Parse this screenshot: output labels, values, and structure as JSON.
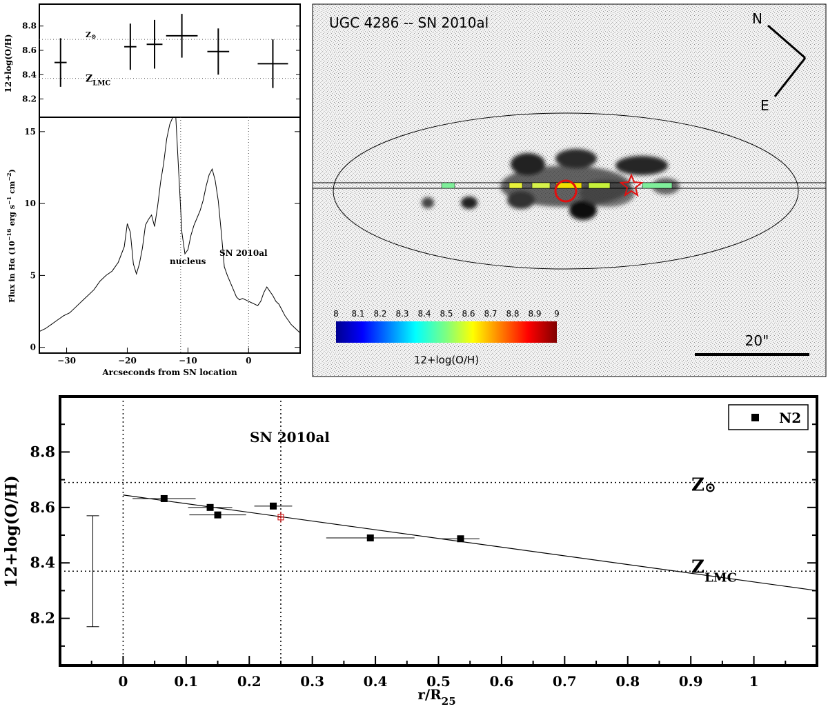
{
  "chart_data": [
    {
      "id": "top-left-abundance",
      "type": "scatter",
      "ylabel": "12+log(O/H)",
      "ylim": [
        8.05,
        8.98
      ],
      "xlim": [
        -34.5,
        8.5
      ],
      "yticks": [
        8.2,
        8.4,
        8.6,
        8.8
      ],
      "reference_lines": [
        {
          "y": 8.69,
          "label_main": "Z",
          "label_sub": "⊙"
        },
        {
          "y": 8.37,
          "label_main": "Z",
          "label_sub": "LMC"
        }
      ],
      "points": [
        {
          "x": -31.0,
          "y": 8.5,
          "xerr": 1.0,
          "yerr": 0.2
        },
        {
          "x": -19.5,
          "y": 8.63,
          "xerr": 1.0,
          "yerr": 0.19
        },
        {
          "x": -15.5,
          "y": 8.65,
          "xerr": 1.3,
          "yerr": 0.2
        },
        {
          "x": -11.0,
          "y": 8.72,
          "xerr": 2.6,
          "yerr": 0.18
        },
        {
          "x": -5.0,
          "y": 8.59,
          "xerr": 1.8,
          "yerr": 0.19
        },
        {
          "x": 4.0,
          "y": 8.49,
          "xerr": 2.5,
          "yerr": 0.2
        }
      ]
    },
    {
      "id": "halpha-profile",
      "type": "line",
      "xlabel": "Arcseconds from SN location",
      "ylabel": "Flux in Hα (10",
      "ylabel_exp1": "−16",
      "ylabel_mid": " erg s",
      "ylabel_exp2": "−1",
      "ylabel_mid2": " cm",
      "ylabel_exp3": "−2",
      "ylabel_end": ")",
      "xlim": [
        -34.5,
        8.5
      ],
      "ylim": [
        -0.4,
        16
      ],
      "xticks": [
        -30,
        -20,
        -10,
        0
      ],
      "yticks": [
        0,
        5,
        10,
        15
      ],
      "vlines": [
        -11.2,
        0
      ],
      "annotations": [
        "nucleus",
        "SN 2010al"
      ],
      "x": [
        -34.5,
        -33.5,
        -32.5,
        -31.5,
        -30.5,
        -29.5,
        -28.5,
        -27.5,
        -26.5,
        -25.5,
        -24.5,
        -23.5,
        -22.5,
        -21.5,
        -20.5,
        -20,
        -19.5,
        -19,
        -18.5,
        -18,
        -17.5,
        -17,
        -16.5,
        -16,
        -15.5,
        -15,
        -14.5,
        -14,
        -13.5,
        -13,
        -12.5,
        -12,
        -11.5,
        -11,
        -10.5,
        -10,
        -9.5,
        -9,
        -8.5,
        -8,
        -7.5,
        -7,
        -6.5,
        -6,
        -5.5,
        -5,
        -4.5,
        -4,
        -3.5,
        -3,
        -2.5,
        -2,
        -1.5,
        -1,
        -0.5,
        0,
        0.5,
        1,
        1.5,
        2,
        2.5,
        3,
        3.5,
        4,
        4.5,
        5,
        5.5,
        6,
        6.5,
        7,
        7.5,
        8,
        8.5
      ],
      "y": [
        1.1,
        1.3,
        1.6,
        1.9,
        2.2,
        2.4,
        2.8,
        3.2,
        3.6,
        4.0,
        4.6,
        5.0,
        5.3,
        5.9,
        7.0,
        8.6,
        8.0,
        5.8,
        5.1,
        5.8,
        6.9,
        8.5,
        8.9,
        9.2,
        8.4,
        9.8,
        11.5,
        12.8,
        14.5,
        15.5,
        18.0,
        16.0,
        12.0,
        8.0,
        6.5,
        6.8,
        7.8,
        8.5,
        9.0,
        9.5,
        10.2,
        11.2,
        12.0,
        12.4,
        11.6,
        10.2,
        8.0,
        5.6,
        5.0,
        4.5,
        4.0,
        3.5,
        3.3,
        3.4,
        3.3,
        3.2,
        3.1,
        3.0,
        2.9,
        3.2,
        3.8,
        4.2,
        3.9,
        3.6,
        3.2,
        3.0,
        2.6,
        2.2,
        1.9,
        1.6,
        1.4,
        1.2,
        1.0
      ]
    },
    {
      "id": "galaxy-image",
      "type": "image",
      "title": "UGC 4286 -- SN 2010al",
      "compass": {
        "north": "N",
        "east": "E"
      },
      "scale_bar_label": "20\"",
      "colorbar": {
        "label": "12+log(O/H)",
        "ticks": [
          "8",
          "8.1",
          "8.2",
          "8.3",
          "8.4",
          "8.5",
          "8.6",
          "8.7",
          "8.8",
          "8.9",
          "9"
        ]
      }
    },
    {
      "id": "gradient",
      "type": "scatter",
      "xlabel": "r/R",
      "xlabel_sub": "25",
      "ylabel": "12+log(O/H)",
      "xlim": [
        -0.1,
        1.1
      ],
      "ylim": [
        8.03,
        9.0
      ],
      "xticks": [
        "0",
        "0.1",
        "0.2",
        "0.3",
        "0.4",
        "0.5",
        "0.6",
        "0.7",
        "0.8",
        "0.9",
        "1"
      ],
      "yticks": [
        "8.2",
        "8.4",
        "8.6",
        "8.8"
      ],
      "legend": {
        "label": "N2",
        "placement": "top-right"
      },
      "annotation": "SN 2010al",
      "sn_position": 0.25,
      "reference_lines": [
        {
          "y": 8.69,
          "label_main": "Z",
          "label_sub": "⊙"
        },
        {
          "y": 8.37,
          "label_main": "Z",
          "label_sub": "LMC"
        }
      ],
      "fit": {
        "x0": 0.0,
        "y0": 8.645,
        "x1": 1.1,
        "y1": 8.3
      },
      "points": [
        {
          "x": 0.065,
          "y": 8.632,
          "xerr": 0.05
        },
        {
          "x": 0.138,
          "y": 8.6,
          "xerr": 0.035
        },
        {
          "x": 0.15,
          "y": 8.573,
          "xerr": 0.045
        },
        {
          "x": 0.238,
          "y": 8.605,
          "xerr": 0.03
        },
        {
          "x": 0.392,
          "y": 8.49,
          "xerr": 0.07
        },
        {
          "x": 0.535,
          "y": 8.487,
          "xerr": 0.03
        }
      ],
      "sn_point": {
        "x": 0.25,
        "y": 8.565,
        "yerr": 0.02
      },
      "typical_error": {
        "x": -0.048,
        "ylo": 8.17,
        "yhi": 8.57
      }
    }
  ]
}
